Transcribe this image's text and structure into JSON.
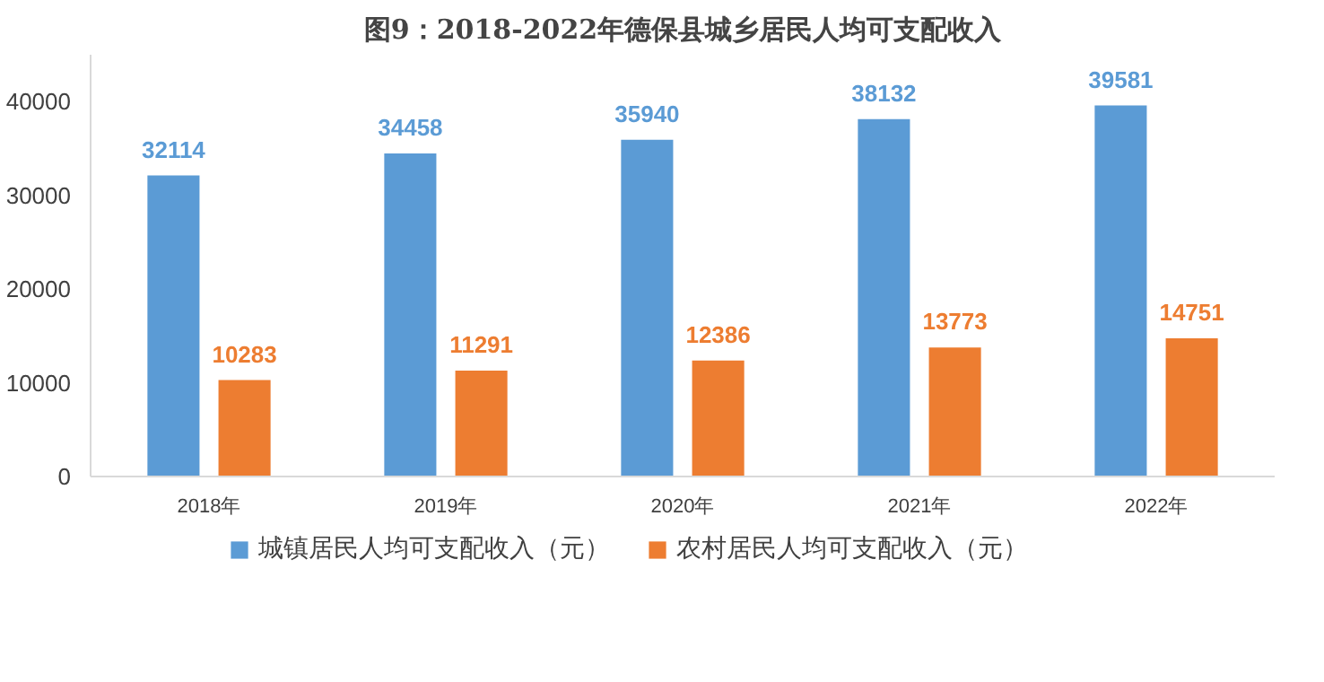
{
  "chart_data": {
    "type": "bar",
    "title": "图9：2018-2022年德保县城乡居民人均可支配收入",
    "categories": [
      "2018年",
      "2019年",
      "2020年",
      "2021年",
      "2022年"
    ],
    "series": [
      {
        "name": "城镇居民人均可支配收入（元）",
        "color": "#5b9bd5",
        "values": [
          32114,
          34458,
          35940,
          38132,
          39581
        ]
      },
      {
        "name": "农村居民人均可支配收入（元）",
        "color": "#ed7d31",
        "values": [
          10283,
          11291,
          12386,
          13773,
          14751
        ]
      }
    ],
    "ylim": [
      0,
      45000
    ],
    "yticks": [
      0,
      10000,
      20000,
      30000,
      40000
    ],
    "grid": false,
    "legend": "bottom",
    "data_labels": true
  }
}
